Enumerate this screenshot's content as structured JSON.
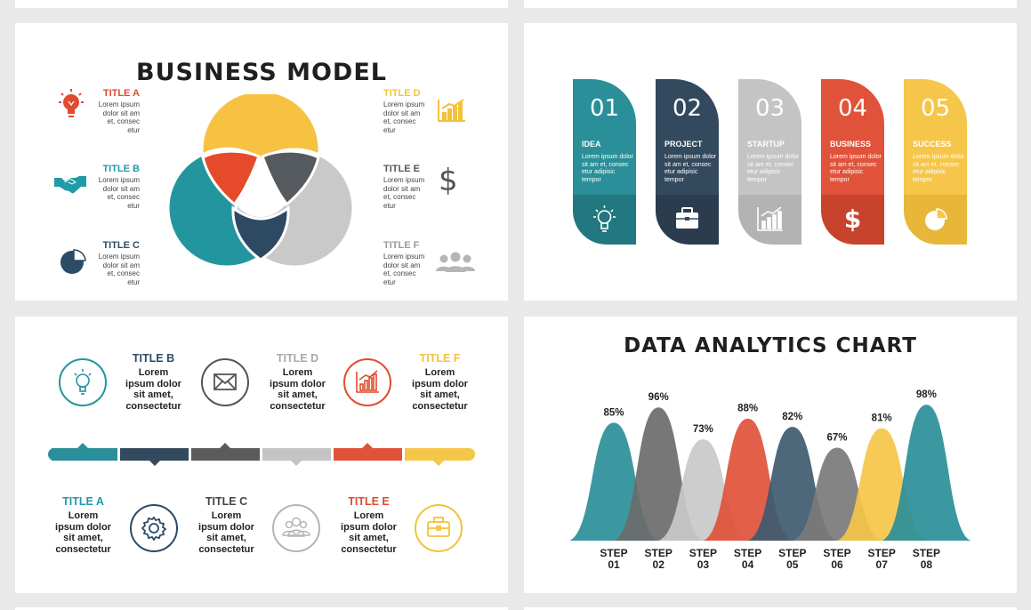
{
  "business_model": {
    "title": "BUSINESS MODEL",
    "items": [
      {
        "title": "TITLE A",
        "text": "Lorem ipsum dolor sit am et, consec etur",
        "color": "#e04b2e",
        "icon": "lightbulb-icon"
      },
      {
        "title": "TITLE B",
        "text": "Lorem ipsum dolor sit am et, consec etur",
        "color": "#1f9aa6",
        "icon": "handshake-icon"
      },
      {
        "title": "TITLE C",
        "text": "Lorem ipsum dolor sit am et, consec etur",
        "color": "#2c4b66",
        "icon": "pie-chart-icon"
      },
      {
        "title": "TITLE D",
        "text": "Lorem ipsum dolor sit am et, consec etur",
        "color": "#f4c23a",
        "icon": "bar-chart-icon"
      },
      {
        "title": "TITLE E",
        "text": "Lorem ipsum dolor sit am et, consec etur",
        "color": "#555555",
        "icon": "dollar-icon"
      },
      {
        "title": "TITLE F",
        "text": "Lorem ipsum dolor sit am et, consec etur",
        "color": "#9a9a9a",
        "icon": "people-icon"
      }
    ],
    "colors": {
      "yellow": "#f7c242",
      "red": "#e54b2b",
      "dark": "#555a5e",
      "teal": "#23959e",
      "navy": "#2d4a62",
      "gray": "#c9c9c9"
    }
  },
  "steps": [
    {
      "num": "01",
      "label": "IDEA",
      "text": "Lorem ipsum dolor sit am et, consec etur adipisic tempor",
      "color": "#2a8f99",
      "dark": "#217880",
      "icon": "lightbulb-icon"
    },
    {
      "num": "02",
      "label": "PROJECT",
      "text": "Lorem ipsum dolor sit am et, consec etur adipisic tempor",
      "color": "#33495e",
      "dark": "#2a3c4e",
      "icon": "briefcase-icon"
    },
    {
      "num": "03",
      "label": "STARTUP",
      "text": "Lorem ipsum dolor sit am et, consec etur adipisic tempor",
      "color": "#c4c4c4",
      "dark": "#b3b3b3",
      "icon": "bar-chart-icon"
    },
    {
      "num": "04",
      "label": "BUSINESS",
      "text": "Lorem ipsum dolor sit am et, consec etur adipisic tempor",
      "color": "#e0533a",
      "dark": "#c8432c",
      "icon": "dollar-icon"
    },
    {
      "num": "05",
      "label": "SUCCESS",
      "text": "Lorem ipsum dolor sit am et, consec etur adipisic tempor",
      "color": "#f6c64a",
      "dark": "#e8b73a",
      "icon": "pie-chart-icon"
    }
  ],
  "timeline": {
    "top": [
      {
        "title": "TITLE B",
        "text": [
          "Lorem",
          "ipsum dolor",
          "sit amet,",
          "consectetur"
        ],
        "color": "#2c4b66",
        "icon": "lightbulb-icon",
        "icon_color": "#23959e"
      },
      {
        "title": "TITLE D",
        "text": [
          "Lorem",
          "ipsum dolor",
          "sit amet,",
          "consectetur"
        ],
        "color": "#a9a9a9",
        "icon": "envelope-icon",
        "icon_color": "#555555"
      },
      {
        "title": "TITLE F",
        "text": [
          "Lorem",
          "ipsum dolor",
          "sit amet,",
          "consectetur"
        ],
        "color": "#f4c23a",
        "icon": "bar-chart-icon",
        "icon_color": "#e04b2e"
      }
    ],
    "bottom": [
      {
        "title": "TITLE A",
        "text": [
          "Lorem",
          "ipsum dolor",
          "sit amet,",
          "consectetur"
        ],
        "color": "#1f9aa6",
        "icon": "gear-icon",
        "icon_color": "#2c4b66"
      },
      {
        "title": "TITLE C",
        "text": [
          "Lorem",
          "ipsum dolor",
          "sit amet,",
          "consectetur"
        ],
        "color": "#444444",
        "icon": "people-icon",
        "icon_color": "#b5b5b5"
      },
      {
        "title": "TITLE E",
        "text": [
          "Lorem",
          "ipsum dolor",
          "sit amet,",
          "consectetur"
        ],
        "color": "#e04b2e",
        "icon": "briefcase-icon",
        "icon_color": "#f4c23a"
      }
    ],
    "bar_colors": [
      "#2a8f99",
      "#33495e",
      "#5b5b5b",
      "#c4c4c4",
      "#e0533a",
      "#f6c64a"
    ]
  },
  "chart_data": {
    "type": "area",
    "title": "DATA ANALYTICS CHART",
    "categories": [
      "STEP 01",
      "STEP 02",
      "STEP 03",
      "STEP 04",
      "STEP 05",
      "STEP 06",
      "STEP 07",
      "STEP 08"
    ],
    "values": [
      85,
      96,
      73,
      88,
      82,
      67,
      81,
      98
    ],
    "value_labels": [
      "85%",
      "96%",
      "73%",
      "88%",
      "82%",
      "67%",
      "81%",
      "98%"
    ],
    "colors": [
      "#2a8f99",
      "#6b6b6b",
      "#c9c9c9",
      "#e0533a",
      "#3e5a70",
      "#7a7a7a",
      "#f6c64a",
      "#2a8f99"
    ],
    "ylim": [
      0,
      100
    ],
    "grid": false,
    "legend": "none"
  }
}
